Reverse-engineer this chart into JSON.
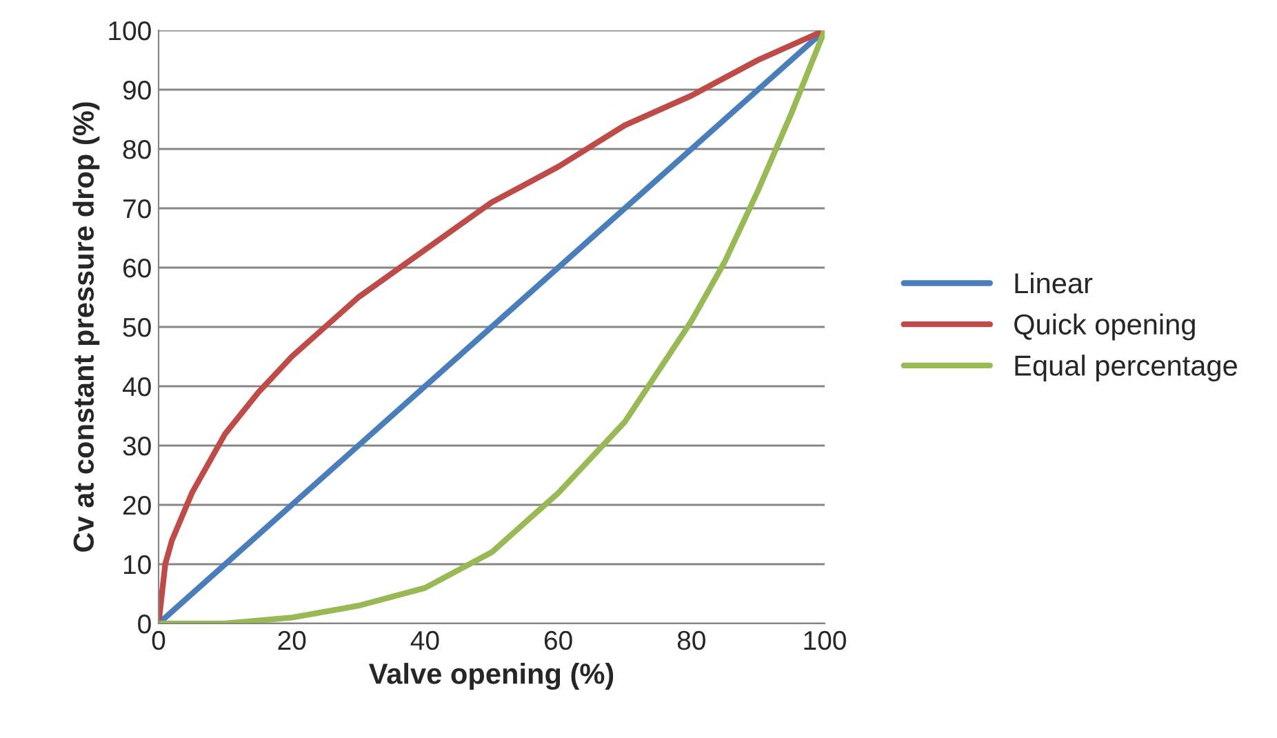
{
  "chart_data": {
    "type": "line",
    "xlabel": "Valve opening (%)",
    "ylabel": "Cv at constant pressure drop (%)",
    "xlim": [
      0,
      100
    ],
    "xticks": [
      0,
      20,
      40,
      60,
      80,
      100
    ],
    "ylim": [
      0,
      100
    ],
    "yticks": [
      0,
      10,
      20,
      30,
      40,
      50,
      60,
      70,
      80,
      90,
      100
    ],
    "grid": "y",
    "legend": "right",
    "marker": "none",
    "line_style": "solid",
    "series": [
      {
        "name": "Linear",
        "color": "#4a7ebb",
        "x": [
          0,
          100
        ],
        "values": [
          0,
          100
        ]
      },
      {
        "name": "Quick opening",
        "color": "#be4b48",
        "x": [
          0,
          1,
          2,
          5,
          10,
          15,
          20,
          25,
          30,
          40,
          50,
          60,
          70,
          80,
          90,
          100
        ],
        "values": [
          0,
          10,
          14,
          22,
          32,
          39,
          45,
          50,
          55,
          63,
          71,
          77,
          84,
          89,
          95,
          100
        ]
      },
      {
        "name": "Equal percentage",
        "color": "#98b954",
        "x": [
          0,
          10,
          20,
          30,
          40,
          50,
          60,
          70,
          80,
          85,
          90,
          95,
          100
        ],
        "values": [
          0,
          0,
          1,
          3,
          6,
          12,
          22,
          34,
          51,
          61,
          73,
          86,
          100
        ]
      }
    ]
  }
}
